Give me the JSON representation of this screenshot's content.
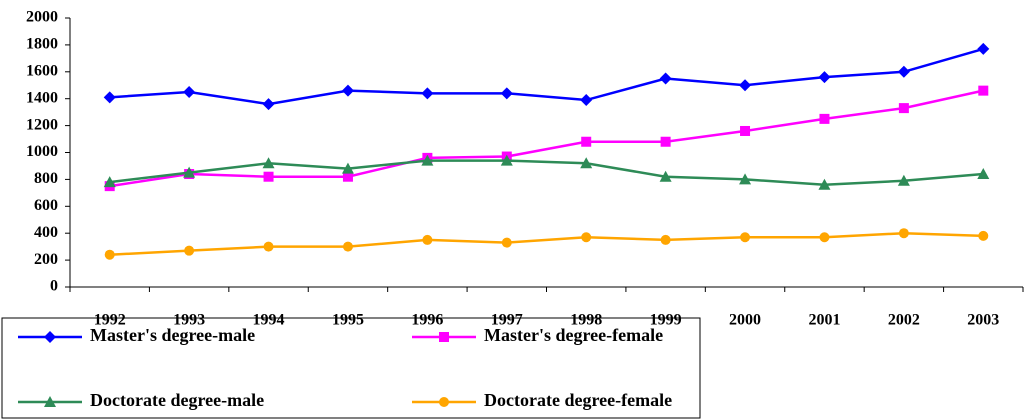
{
  "chart_data": {
    "type": "line",
    "categories": [
      "1992",
      "1993",
      "1994",
      "1995",
      "1996",
      "1997",
      "1998",
      "1999",
      "2000",
      "2001",
      "2002",
      "2003"
    ],
    "series": [
      {
        "name": "Master's degree-male",
        "color": "#0000ff",
        "marker": "diamond",
        "values": [
          1410,
          1450,
          1360,
          1460,
          1440,
          1440,
          1390,
          1550,
          1500,
          1560,
          1600,
          1770
        ]
      },
      {
        "name": "Master's degree-female",
        "color": "#ff00ff",
        "marker": "square",
        "values": [
          750,
          840,
          820,
          820,
          960,
          970,
          1080,
          1080,
          1160,
          1250,
          1330,
          1460
        ]
      },
      {
        "name": "Doctorate degree-male",
        "color": "#2e8b57",
        "marker": "triangle",
        "values": [
          780,
          850,
          920,
          880,
          940,
          940,
          920,
          820,
          800,
          760,
          790,
          840
        ]
      },
      {
        "name": "Doctorate degree-female",
        "color": "#ffa500",
        "marker": "circle",
        "values": [
          240,
          270,
          300,
          300,
          350,
          330,
          370,
          350,
          370,
          370,
          400,
          380
        ]
      }
    ],
    "ylim": [
      0,
      2000
    ],
    "yticks": [
      0,
      200,
      400,
      600,
      800,
      1000,
      1200,
      1400,
      1600,
      1800,
      2000
    ],
    "grid": false,
    "legend": "bottom"
  }
}
